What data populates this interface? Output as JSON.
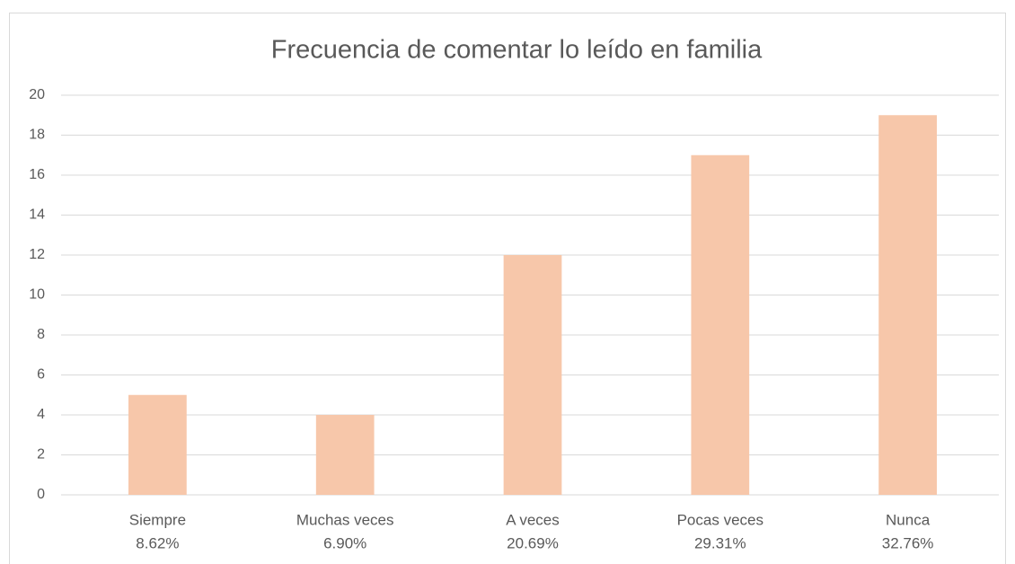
{
  "chart_data": {
    "type": "bar",
    "title": "Frecuencia de comentar lo leído en familia",
    "categories": [
      "Siempre",
      "Muchas veces",
      "A veces",
      "Pocas veces",
      "Nunca"
    ],
    "shares": [
      8.62,
      6.9,
      20.69,
      29.31,
      32.76
    ],
    "share_labels": [
      "8.62%",
      "6.90%",
      "20.69%",
      "29.31%",
      "32.76%"
    ],
    "values": [
      5,
      4,
      12,
      17,
      19
    ],
    "color": "#f7c7aa",
    "ylim": [
      0,
      20
    ],
    "yticks": [
      0,
      2,
      4,
      6,
      8,
      10,
      12,
      14,
      16,
      18,
      20
    ],
    "grid": true
  }
}
